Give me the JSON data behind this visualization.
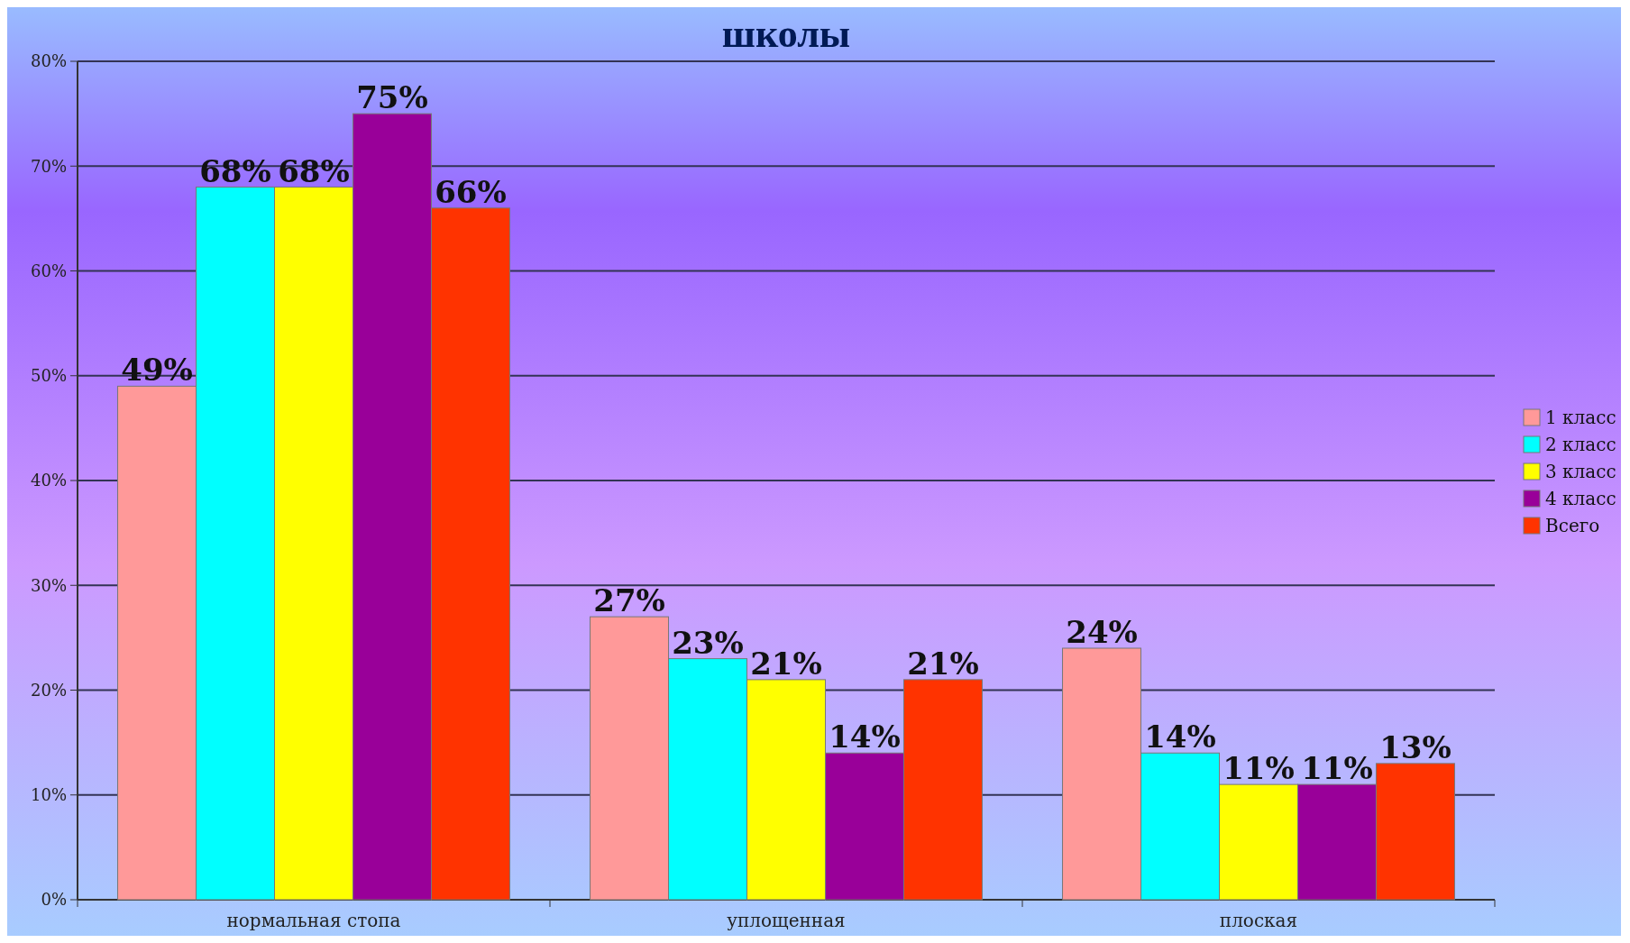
{
  "chart_data": {
    "type": "bar",
    "title": "школы",
    "categories": [
      "нормальная стопа",
      "уплощенная",
      "плоская"
    ],
    "series": [
      {
        "name": "1 класс",
        "color": "#ff9999",
        "values": [
          49,
          27,
          24
        ],
        "value_labels": [
          "49%",
          "27%",
          "24%"
        ]
      },
      {
        "name": "2 класс",
        "color": "#00ffff",
        "values": [
          68,
          23,
          14
        ],
        "value_labels": [
          "68%",
          "23%",
          "14%"
        ]
      },
      {
        "name": "3 класс",
        "color": "#ffff00",
        "values": [
          68,
          21,
          11
        ],
        "value_labels": [
          "68%",
          "21%",
          "11%"
        ]
      },
      {
        "name": "4 класс",
        "color": "#990099",
        "values": [
          75,
          14,
          11
        ],
        "value_labels": [
          "75%",
          "14%",
          "11%"
        ]
      },
      {
        "name": "Всего",
        "color": "#ff3300",
        "values": [
          66,
          21,
          13
        ],
        "value_labels": [
          "66%",
          "21%",
          "13%"
        ]
      }
    ],
    "ylim": [
      0,
      80
    ],
    "yticks": [
      {
        "value": 0,
        "label": "0%"
      },
      {
        "value": 10,
        "label": "10%"
      },
      {
        "value": 20,
        "label": "20%"
      },
      {
        "value": 30,
        "label": "30%"
      },
      {
        "value": 40,
        "label": "40%"
      },
      {
        "value": 50,
        "label": "50%"
      },
      {
        "value": 60,
        "label": "60%"
      },
      {
        "value": 70,
        "label": "70%"
      },
      {
        "value": 80,
        "label": "80%"
      }
    ],
    "grid": "y",
    "legend": "right"
  }
}
